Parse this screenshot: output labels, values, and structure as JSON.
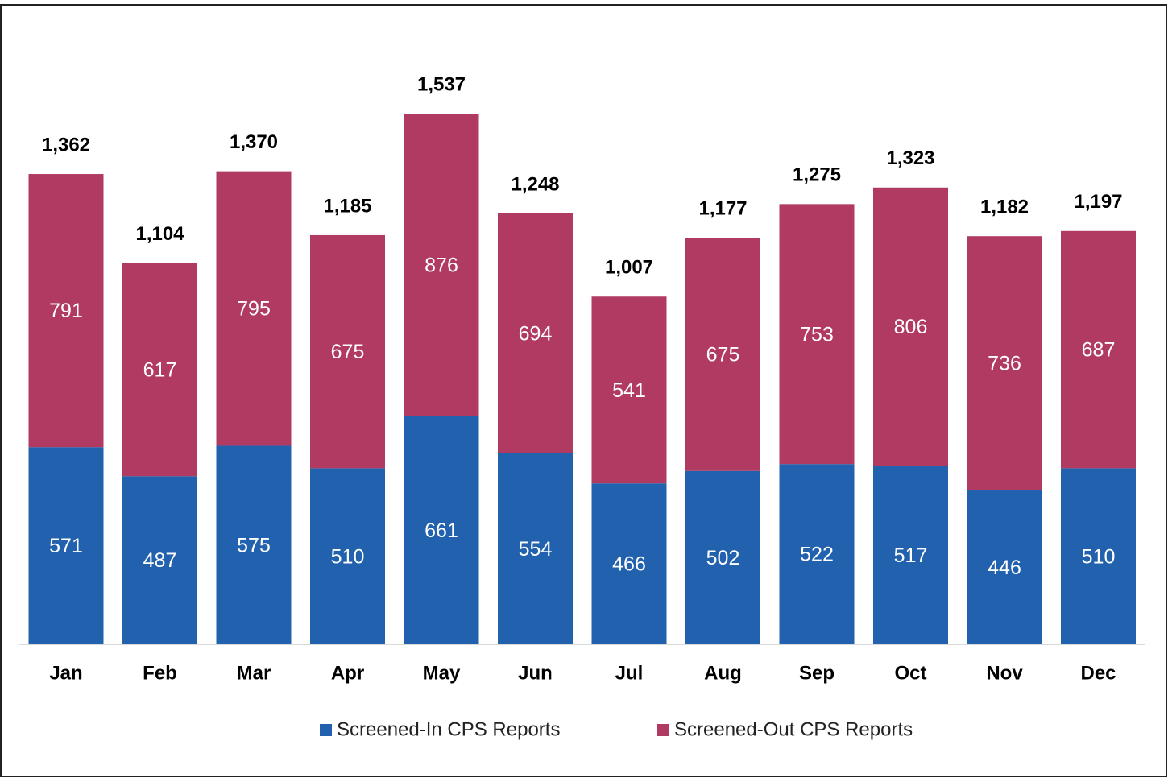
{
  "chart_data": {
    "type": "stacked_bar",
    "categories": [
      "Jan",
      "Feb",
      "Mar",
      "Apr",
      "May",
      "Jun",
      "Jul",
      "Aug",
      "Sep",
      "Oct",
      "Nov",
      "Dec"
    ],
    "series": [
      {
        "name": "Screened-In CPS Reports",
        "color": "#2161ad",
        "values": [
          571,
          487,
          575,
          510,
          661,
          554,
          466,
          502,
          522,
          517,
          446,
          510
        ]
      },
      {
        "name": "Screened-Out CPS Reports",
        "color": "#b03a62",
        "values": [
          791,
          617,
          795,
          675,
          876,
          694,
          541,
          675,
          753,
          806,
          736,
          687
        ]
      }
    ],
    "totals": {
      "values": [
        1362,
        1104,
        1370,
        1185,
        1537,
        1248,
        1007,
        1177,
        1275,
        1323,
        1182,
        1197
      ],
      "value_labels": [
        "1,362",
        "1,104",
        "1,370",
        "1,185",
        "1,537",
        "1,248",
        "1,007",
        "1,177",
        "1,275",
        "1,323",
        "1,182",
        "1,197"
      ]
    },
    "ylim": [
      0,
      1600
    ],
    "legend": "bottom"
  }
}
